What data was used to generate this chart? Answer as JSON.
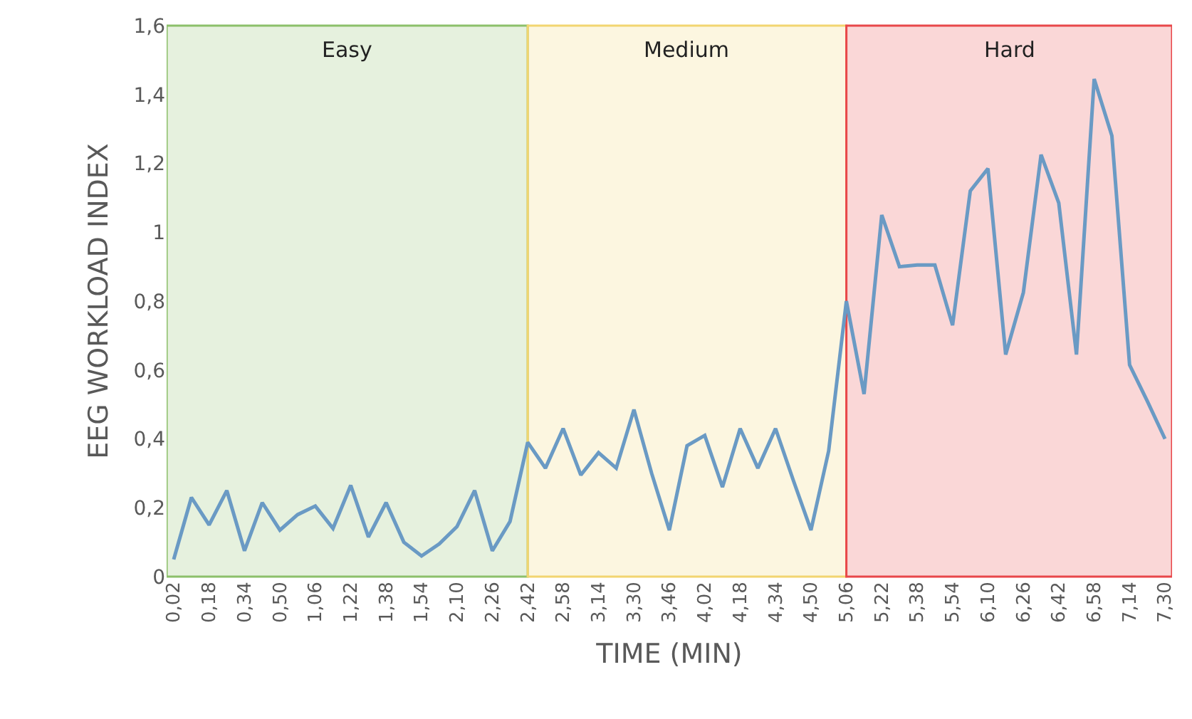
{
  "chart_data": {
    "type": "line",
    "xlabel": "TIME (MIN)",
    "ylabel": "EEG WORKLOAD INDEX",
    "categories": [
      "0,02",
      null,
      "0,18",
      null,
      "0,34",
      null,
      "0,50",
      null,
      "1,06",
      null,
      "1,22",
      null,
      "1,38",
      null,
      "1,54",
      null,
      "2,10",
      null,
      "2,26",
      null,
      "2,42",
      null,
      "2,58",
      null,
      "3,14",
      null,
      "3,30",
      null,
      "3,46",
      null,
      "4,02",
      null,
      "4,18",
      null,
      "4,34",
      null,
      "4,50",
      null,
      "5,06",
      null,
      "5,22",
      null,
      "5,38",
      null,
      "5,54",
      null,
      "6,10",
      null,
      "6,26",
      null,
      "6,42",
      null,
      "6,58",
      null,
      "7,14",
      null,
      "7,30"
    ],
    "series": [
      {
        "color": "#6a9ac4",
        "values": [
          0.05,
          0.23,
          0.15,
          0.25,
          0.075,
          0.215,
          0.135,
          0.18,
          0.205,
          0.14,
          0.265,
          0.115,
          0.215,
          0.1,
          0.06,
          0.095,
          0.145,
          0.25,
          0.075,
          0.16,
          0.39,
          0.315,
          0.43,
          0.295,
          0.36,
          0.315,
          0.485,
          0.3,
          0.135,
          0.38,
          0.41,
          0.26,
          0.43,
          0.315,
          0.43,
          0.28,
          0.135,
          0.365,
          0.8,
          0.53,
          1.05,
          0.9,
          0.905,
          0.905,
          0.73,
          1.12,
          1.185,
          0.645,
          0.825,
          1.225,
          1.085,
          0.645,
          1.445,
          1.28,
          0.615,
          0.51,
          0.4
        ]
      }
    ],
    "ylim": [
      0,
      1.6
    ],
    "yticks": [
      0,
      {
        "value": 0.2,
        "label": "0,2"
      },
      {
        "value": 0.4,
        "label": "0,4"
      },
      {
        "value": 0.6,
        "label": "0,6"
      },
      {
        "value": 0.8,
        "label": "0,8"
      },
      1,
      {
        "value": 1.2,
        "label": "1,2"
      },
      {
        "value": 1.4,
        "label": "1,4"
      },
      {
        "value": 1.6,
        "label": "1,6"
      }
    ],
    "bands": [
      {
        "axis": "x",
        "from": "0,02",
        "to": "2,42",
        "label": "Easy",
        "color": "#8cc06a"
      },
      {
        "axis": "x",
        "from": "2,42",
        "to": "5,06",
        "label": "Medium",
        "color": "#f2d570"
      },
      {
        "axis": "x",
        "from": "5,06",
        "to": "7,30",
        "label": "Hard",
        "color": "#e8474a"
      }
    ],
    "grid": false,
    "marker": "none",
    "line_style": "solid"
  }
}
